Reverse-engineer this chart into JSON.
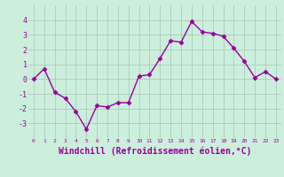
{
  "x": [
    0,
    1,
    2,
    3,
    4,
    5,
    6,
    7,
    8,
    9,
    10,
    11,
    12,
    13,
    14,
    15,
    16,
    17,
    18,
    19,
    20,
    21,
    22,
    23
  ],
  "y": [
    0.0,
    0.7,
    -0.9,
    -1.3,
    -2.2,
    -3.4,
    -1.8,
    -1.9,
    -1.6,
    -1.6,
    0.2,
    0.3,
    1.4,
    2.6,
    2.5,
    3.9,
    3.2,
    3.1,
    2.9,
    2.1,
    1.2,
    0.1,
    0.5,
    0.0
  ],
  "line_color": "#990099",
  "marker": "D",
  "markersize": 2.5,
  "linewidth": 1.0,
  "xlabel": "Windchill (Refroidissement éolien,°C)",
  "xlabel_fontsize": 7,
  "bg_color": "#CCEEDD",
  "grid_color": "#AACCBB",
  "tick_color": "#990099",
  "ylim": [
    -4,
    5
  ],
  "xlim": [
    -0.5,
    23.5
  ],
  "yticks": [
    -3,
    -2,
    -1,
    0,
    1,
    2,
    3,
    4
  ],
  "xticks": [
    0,
    1,
    2,
    3,
    4,
    5,
    6,
    7,
    8,
    9,
    10,
    11,
    12,
    13,
    14,
    15,
    16,
    17,
    18,
    19,
    20,
    21,
    22,
    23
  ]
}
